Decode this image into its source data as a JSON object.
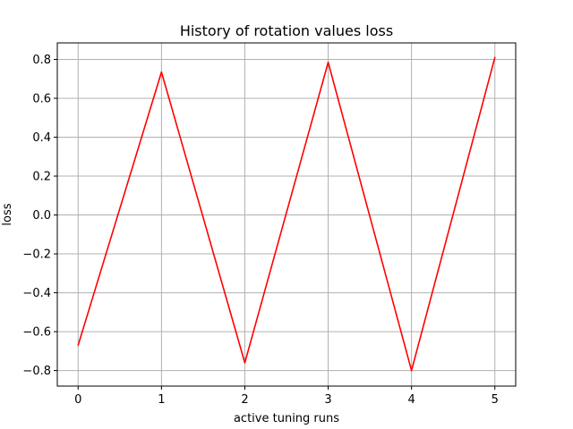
{
  "chart_data": {
    "type": "line",
    "title": "History of rotation values loss",
    "xlabel": "active tuning runs",
    "ylabel": "loss",
    "xlim": [
      -0.25,
      5.25
    ],
    "ylim": [
      -0.88,
      0.885
    ],
    "x_ticks": [
      0,
      1,
      2,
      3,
      4,
      5
    ],
    "x_tick_labels": [
      "0",
      "1",
      "2",
      "3",
      "4",
      "5"
    ],
    "y_ticks": [
      -0.8,
      -0.6,
      -0.4,
      -0.2,
      0.0,
      0.2,
      0.4,
      0.6,
      0.8
    ],
    "y_tick_labels": [
      "−0.8",
      "−0.6",
      "−0.4",
      "−0.2",
      "0.0",
      "0.2",
      "0.4",
      "0.6",
      "0.8"
    ],
    "grid": true,
    "series": [
      {
        "color": "#ff0000",
        "x": [
          0,
          1,
          2,
          3,
          4,
          5
        ],
        "y": [
          -0.67,
          0.735,
          -0.76,
          0.785,
          -0.8,
          0.81
        ]
      }
    ]
  }
}
